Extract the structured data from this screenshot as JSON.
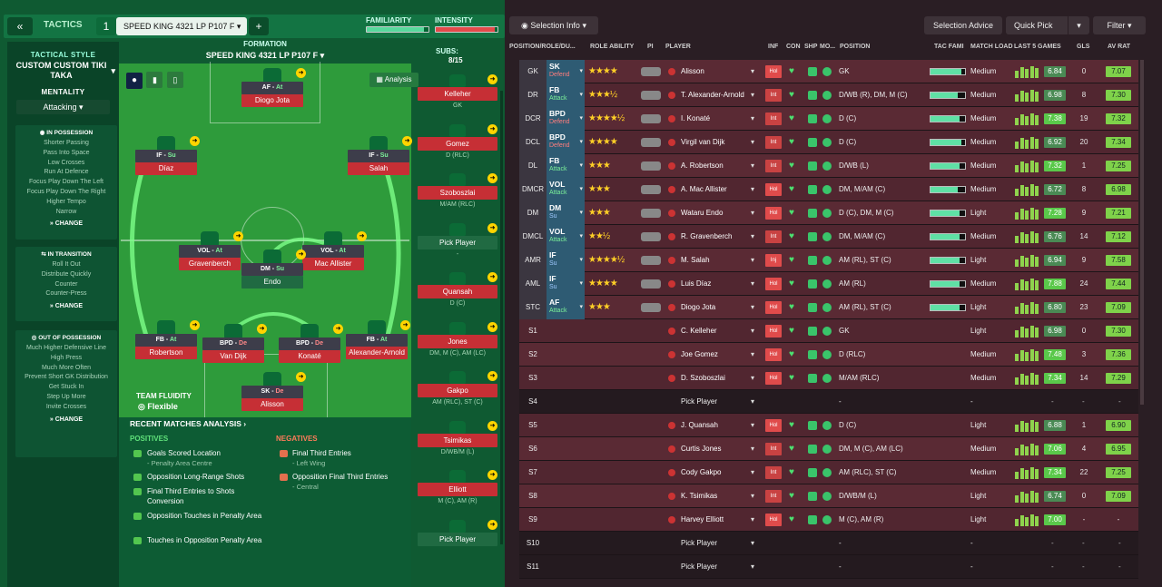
{
  "topbar": {
    "back": "«",
    "tactics_label": "TACTICS",
    "slot": "1",
    "tactic_name": "SPEED KING 4321 LP P107 F",
    "add": "+",
    "familiarity_label": "FAMILIARITY",
    "intensity_label": "INTENSITY",
    "familiarity_level": 0.93,
    "intensity_level": 0.95
  },
  "style": {
    "heading": "TACTICAL STYLE",
    "name": "CUSTOM CUSTOM TIKI TAKA",
    "mentality_label": "MENTALITY",
    "mentality": "Attacking",
    "in_possession": {
      "title": "IN POSSESSION",
      "items": [
        "Shorter Passing",
        "Pass Into Space",
        "Low Crosses",
        "Run At Defence",
        "Focus Play Down The Left",
        "Focus Play Down The Right",
        "Higher Tempo",
        "Narrow"
      ],
      "change": "CHANGE"
    },
    "in_transition": {
      "title": "IN TRANSITION",
      "items": [
        "Roll It Out",
        "Distribute Quickly",
        "Counter",
        "Counter-Press"
      ],
      "change": "CHANGE"
    },
    "out_of_possession": {
      "title": "OUT OF POSSESSION",
      "items": [
        "Much Higher Defensive Line",
        "High Press",
        "Much More Often",
        "Prevent Short GK Distribution",
        "Get Stuck In",
        "Step Up More",
        "Invite Crosses"
      ],
      "change": "CHANGE"
    }
  },
  "formation": {
    "label": "FORMATION",
    "name": "SPEED KING 4321 LP P107 F",
    "analysis": "Analysis",
    "subs_label": "SUBS:",
    "subs_count": "8/15",
    "players": [
      {
        "role": "AF",
        "duty": "At",
        "name": "Diogo Jota"
      },
      {
        "role": "IF",
        "duty": "Su",
        "name": "Díaz"
      },
      {
        "role": "IF",
        "duty": "Su",
        "name": "Salah"
      },
      {
        "role": "VOL",
        "duty": "At",
        "name": "Gravenberch"
      },
      {
        "role": "VOL",
        "duty": "At",
        "name": "Mac Allister"
      },
      {
        "role": "DM",
        "duty": "Su",
        "name": "Endo"
      },
      {
        "role": "FB",
        "duty": "At",
        "name": "Robertson"
      },
      {
        "role": "BPD",
        "duty": "De",
        "name": "Van Dijk"
      },
      {
        "role": "BPD",
        "duty": "De",
        "name": "Konaté"
      },
      {
        "role": "FB",
        "duty": "At",
        "name": "Alexander-Arnold"
      },
      {
        "role": "SK",
        "duty": "De",
        "name": "Alisson"
      }
    ],
    "fluidity_label": "TEAM FLUIDITY",
    "fluidity": "Flexible"
  },
  "subs": [
    {
      "name": "Kelleher",
      "pos": "GK"
    },
    {
      "name": "Gomez",
      "pos": "D (RLC)"
    },
    {
      "name": "Szoboszlai",
      "pos": "M/AM (RLC)"
    },
    {
      "name": "Pick Player",
      "pos": "-"
    },
    {
      "name": "Quansah",
      "pos": "D (C)"
    },
    {
      "name": "Jones",
      "pos": "DM, M (C), AM (LC)"
    },
    {
      "name": "Gakpo",
      "pos": "AM (RLC), ST (C)"
    },
    {
      "name": "Tsimikas",
      "pos": "D/WB/M (L)"
    },
    {
      "name": "Elliott",
      "pos": "M (C), AM (R)"
    },
    {
      "name": "Pick Player",
      "pos": ""
    }
  ],
  "analysis": {
    "title": "RECENT MATCHES ANALYSIS ›",
    "positives_label": "POSITIVES",
    "negatives_label": "NEGATIVES",
    "positives": [
      {
        "t": "Goals Scored Location",
        "s": "- Penalty Area Centre"
      },
      {
        "t": "Opposition Long-Range Shots",
        "s": ""
      },
      {
        "t": "Final Third Entries to Shots Conversion",
        "s": ""
      },
      {
        "t": "Opposition Touches in Penalty Area",
        "s": ""
      },
      {
        "t": "Touches in Opposition Penalty Area",
        "s": ""
      }
    ],
    "negatives": [
      {
        "t": "Final Third Entries",
        "s": "- Left Wing"
      },
      {
        "t": "Opposition Final Third Entries",
        "s": "- Central"
      }
    ]
  },
  "right": {
    "selection_info": "Selection Info",
    "selection_advice": "Selection Advice",
    "quick_pick": "Quick Pick",
    "filter": "Filter",
    "headers": [
      "POSITION/ROLE/DU...",
      "ROLE ABILITY",
      "PI",
      "PLAYER",
      "INF",
      "CON",
      "SHP",
      "MO...",
      "POSITION",
      "TAC FAMI",
      "MATCH LOAD",
      "LAST 5 GAMES",
      "GLS",
      "AV RAT"
    ],
    "rows": [
      {
        "pos": "GK",
        "role": "SK",
        "duty": "Defend",
        "stars": "★★★★",
        "player": "Alisson",
        "inf": "Hol",
        "position": "GK",
        "fam": 0.9,
        "load": "Medium",
        "rating": "6.84",
        "gls": "0",
        "av": "7.07"
      },
      {
        "pos": "DR",
        "role": "FB",
        "duty": "Attack",
        "stars": "★★★½",
        "player": "T. Alexander-Arnold",
        "inf": "Int",
        "position": "D/WB (R), DM, M (C)",
        "fam": 0.8,
        "load": "Medium",
        "rating": "6.98",
        "gls": "8",
        "av": "7.30"
      },
      {
        "pos": "DCR",
        "role": "BPD",
        "duty": "Defend",
        "stars": "★★★★½",
        "player": "I. Konaté",
        "inf": "Int",
        "position": "D (C)",
        "fam": 0.85,
        "load": "Medium",
        "rating": "7.38",
        "gls": "19",
        "av": "7.32"
      },
      {
        "pos": "DCL",
        "role": "BPD",
        "duty": "Defend",
        "stars": "★★★★",
        "player": "Virgil van Dijk",
        "inf": "Int",
        "position": "D (C)",
        "fam": 0.9,
        "load": "Medium",
        "rating": "6.92",
        "gls": "20",
        "av": "7.34"
      },
      {
        "pos": "DL",
        "role": "FB",
        "duty": "Attack",
        "stars": "★★★",
        "player": "A. Robertson",
        "inf": "Int",
        "position": "D/WB (L)",
        "fam": 0.85,
        "load": "Medium",
        "rating": "7.32",
        "gls": "1",
        "av": "7.25"
      },
      {
        "pos": "DMCR",
        "role": "VOL",
        "duty": "Attack",
        "stars": "★★★",
        "player": "A. Mac Allister",
        "inf": "Hol",
        "position": "DM, M/AM (C)",
        "fam": 0.8,
        "load": "Medium",
        "rating": "6.72",
        "gls": "8",
        "av": "6.98"
      },
      {
        "pos": "DM",
        "role": "DM",
        "duty": "Su",
        "stars": "★★★",
        "player": "Wataru Endo",
        "inf": "Hol",
        "position": "D (C), DM, M (C)",
        "fam": 0.85,
        "load": "Light",
        "rating": "7.28",
        "gls": "9",
        "av": "7.21"
      },
      {
        "pos": "DMCL",
        "role": "VOL",
        "duty": "Attack",
        "stars": "★★½",
        "player": "R. Gravenberch",
        "inf": "Int",
        "position": "DM, M/AM (C)",
        "fam": 0.85,
        "load": "Medium",
        "rating": "6.76",
        "gls": "14",
        "av": "7.12"
      },
      {
        "pos": "AMR",
        "role": "IF",
        "duty": "Su",
        "stars": "★★★★½",
        "player": "M. Salah",
        "inf": "Inj",
        "position": "AM (RL), ST (C)",
        "fam": 0.85,
        "load": "Light",
        "rating": "6.94",
        "gls": "9",
        "av": "7.58"
      },
      {
        "pos": "AML",
        "role": "IF",
        "duty": "Su",
        "stars": "★★★★",
        "player": "Luis Díaz",
        "inf": "Hol",
        "position": "AM (RL)",
        "fam": 0.85,
        "load": "Medium",
        "rating": "7.88",
        "gls": "24",
        "av": "7.44"
      },
      {
        "pos": "STC",
        "role": "AF",
        "duty": "Attack",
        "stars": "★★★",
        "player": "Diogo Jota",
        "inf": "Hol",
        "position": "AM (RL), ST (C)",
        "fam": 0.85,
        "load": "Light",
        "rating": "6.80",
        "gls": "23",
        "av": "7.09"
      },
      {
        "pos": "S1",
        "player": "C. Kelleher",
        "inf": "Hol",
        "position": "GK",
        "fam": 0,
        "load": "Light",
        "rating": "6.98",
        "gls": "0",
        "av": "7.30"
      },
      {
        "pos": "S2",
        "player": "Joe Gomez",
        "inf": "Hol",
        "position": "D (RLC)",
        "fam": 0,
        "load": "Medium",
        "rating": "7.48",
        "gls": "3",
        "av": "7.36"
      },
      {
        "pos": "S3",
        "player": "D. Szoboszlai",
        "inf": "Hol",
        "position": "M/AM (RLC)",
        "fam": 0,
        "load": "Medium",
        "rating": "7.34",
        "gls": "14",
        "av": "7.29"
      },
      {
        "pos": "S4",
        "pick": "Pick Player",
        "position": "-",
        "load": "-",
        "rating": "-",
        "gls": "-",
        "av": "-"
      },
      {
        "pos": "S5",
        "player": "J. Quansah",
        "inf": "Hol",
        "position": "D (C)",
        "fam": 0,
        "load": "Light",
        "rating": "6.88",
        "gls": "1",
        "av": "6.90"
      },
      {
        "pos": "S6",
        "player": "Curtis Jones",
        "inf": "Int",
        "position": "DM, M (C), AM (LC)",
        "fam": 0,
        "load": "Medium",
        "rating": "7.06",
        "gls": "4",
        "av": "6.95"
      },
      {
        "pos": "S7",
        "player": "Cody Gakpo",
        "inf": "Int",
        "position": "AM (RLC), ST (C)",
        "fam": 0,
        "load": "Medium",
        "rating": "7.34",
        "gls": "22",
        "av": "7.25"
      },
      {
        "pos": "S8",
        "player": "K. Tsimikas",
        "inf": "Int",
        "position": "D/WB/M (L)",
        "fam": 0,
        "load": "Light",
        "rating": "6.74",
        "gls": "0",
        "av": "7.09"
      },
      {
        "pos": "S9",
        "player": "Harvey Elliott",
        "inf": "Hol",
        "position": "M (C), AM (R)",
        "fam": 0,
        "load": "Light",
        "rating": "7.00",
        "gls": "-",
        "av": "-"
      },
      {
        "pos": "S10",
        "pick": "Pick Player",
        "position": "-",
        "load": "-",
        "rating": "-",
        "gls": "-",
        "av": "-"
      },
      {
        "pos": "S11",
        "pick": "Pick Player",
        "position": "-",
        "load": "-",
        "rating": "-",
        "gls": "-",
        "av": "-"
      }
    ]
  }
}
